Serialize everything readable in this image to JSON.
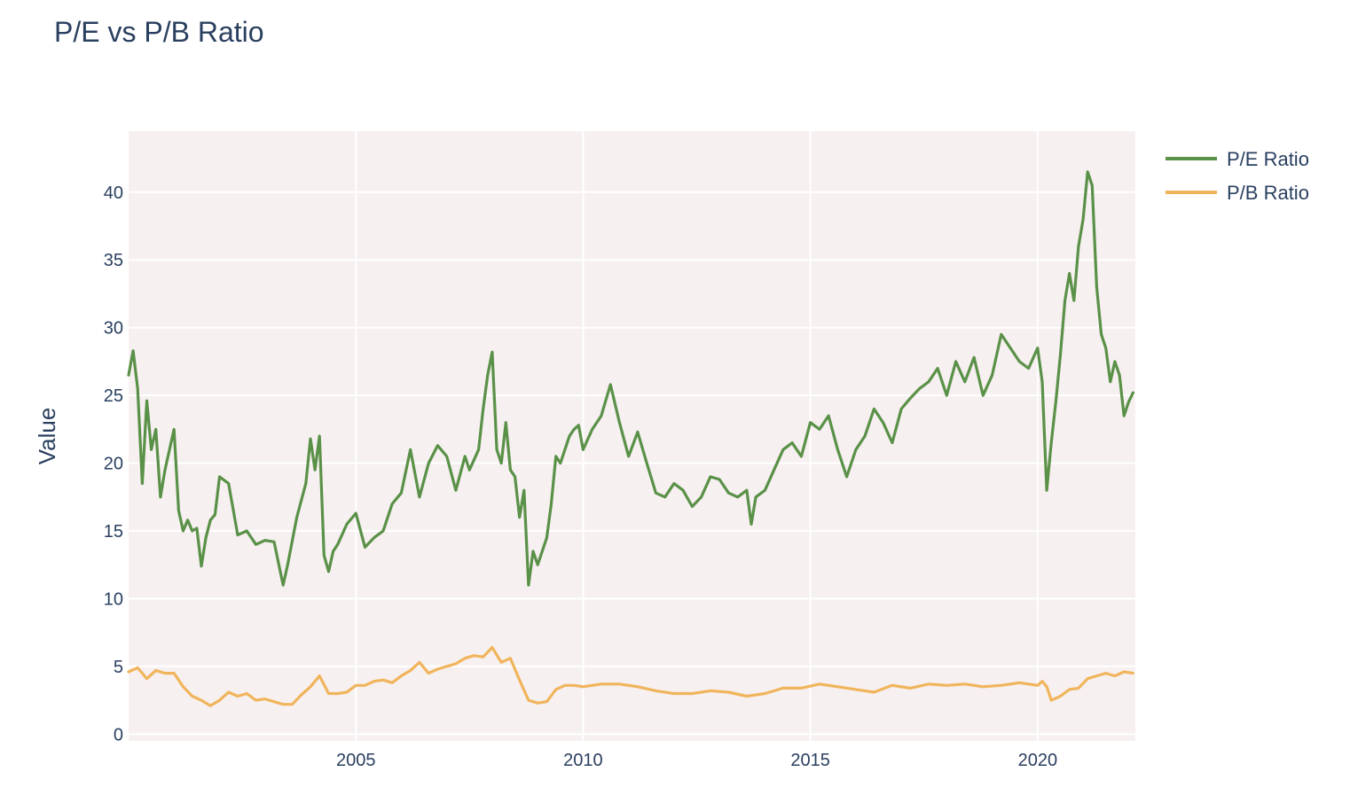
{
  "chart_data": {
    "type": "line",
    "title": "P/E vs P/B Ratio",
    "xlabel": "",
    "ylabel": "Value",
    "x_range": [
      2000.0,
      2022.15
    ],
    "ylim": [
      -0.5,
      44.5
    ],
    "x_ticks": [
      {
        "value": 2005,
        "label": "2005"
      },
      {
        "value": 2010,
        "label": "2010"
      },
      {
        "value": 2015,
        "label": "2015"
      },
      {
        "value": 2020,
        "label": "2020"
      }
    ],
    "y_ticks": [
      {
        "value": 0,
        "label": "0"
      },
      {
        "value": 5,
        "label": "5"
      },
      {
        "value": 10,
        "label": "10"
      },
      {
        "value": 15,
        "label": "15"
      },
      {
        "value": 20,
        "label": "20"
      },
      {
        "value": 25,
        "label": "25"
      },
      {
        "value": 30,
        "label": "30"
      },
      {
        "value": 35,
        "label": "35"
      },
      {
        "value": 40,
        "label": "40"
      }
    ],
    "grid": true,
    "plot_background": "#f7f0f0",
    "legend_position": "top-right",
    "series": [
      {
        "name": "P/E Ratio",
        "color": "#5a9148",
        "x": [
          2000.0,
          2000.1,
          2000.2,
          2000.3,
          2000.4,
          2000.5,
          2000.6,
          2000.7,
          2000.8,
          2000.9,
          2001.0,
          2001.1,
          2001.2,
          2001.3,
          2001.4,
          2001.5,
          2001.6,
          2001.7,
          2001.8,
          2001.9,
          2002.0,
          2002.2,
          2002.4,
          2002.6,
          2002.8,
          2003.0,
          2003.2,
          2003.4,
          2003.5,
          2003.7,
          2003.9,
          2004.0,
          2004.1,
          2004.2,
          2004.3,
          2004.4,
          2004.5,
          2004.6,
          2004.8,
          2005.0,
          2005.2,
          2005.4,
          2005.6,
          2005.8,
          2006.0,
          2006.2,
          2006.4,
          2006.6,
          2006.8,
          2007.0,
          2007.2,
          2007.4,
          2007.5,
          2007.7,
          2007.8,
          2007.9,
          2008.0,
          2008.1,
          2008.2,
          2008.3,
          2008.4,
          2008.5,
          2008.6,
          2008.7,
          2008.8,
          2008.9,
          2009.0,
          2009.1,
          2009.2,
          2009.3,
          2009.4,
          2009.5,
          2009.6,
          2009.7,
          2009.8,
          2009.9,
          2010.0,
          2010.2,
          2010.4,
          2010.6,
          2010.8,
          2011.0,
          2011.2,
          2011.4,
          2011.6,
          2011.8,
          2012.0,
          2012.2,
          2012.4,
          2012.6,
          2012.8,
          2013.0,
          2013.2,
          2013.4,
          2013.6,
          2013.7,
          2013.8,
          2014.0,
          2014.2,
          2014.4,
          2014.6,
          2014.8,
          2015.0,
          2015.2,
          2015.4,
          2015.6,
          2015.8,
          2016.0,
          2016.2,
          2016.4,
          2016.6,
          2016.8,
          2017.0,
          2017.2,
          2017.4,
          2017.6,
          2017.8,
          2018.0,
          2018.2,
          2018.4,
          2018.6,
          2018.8,
          2019.0,
          2019.2,
          2019.4,
          2019.6,
          2019.8,
          2020.0,
          2020.1,
          2020.2,
          2020.3,
          2020.4,
          2020.5,
          2020.6,
          2020.7,
          2020.8,
          2020.9,
          2021.0,
          2021.1,
          2021.2,
          2021.3,
          2021.4,
          2021.5,
          2021.6,
          2021.7,
          2021.8,
          2021.9,
          2022.0,
          2022.1
        ],
        "y": [
          26.5,
          28.3,
          25.5,
          18.5,
          24.6,
          21.0,
          22.5,
          17.5,
          19.5,
          21.0,
          22.5,
          16.5,
          15.0,
          15.8,
          15.0,
          15.2,
          12.4,
          14.5,
          15.8,
          16.2,
          19.0,
          18.5,
          14.7,
          15.0,
          14.0,
          14.3,
          14.2,
          11.0,
          12.5,
          16.0,
          18.5,
          21.8,
          19.5,
          22.0,
          13.2,
          12.0,
          13.5,
          14.0,
          15.5,
          16.3,
          13.8,
          14.5,
          15.0,
          17.0,
          17.8,
          21.0,
          17.5,
          20.0,
          21.3,
          20.5,
          18.0,
          20.5,
          19.5,
          21.0,
          24.0,
          26.5,
          28.2,
          21.0,
          20.0,
          23.0,
          19.5,
          19.0,
          16.0,
          18.0,
          11.0,
          13.5,
          12.5,
          13.5,
          14.5,
          17.0,
          20.5,
          20.0,
          21.0,
          22.0,
          22.5,
          22.8,
          21.0,
          22.5,
          23.5,
          25.8,
          23.0,
          20.5,
          22.3,
          20.0,
          17.8,
          17.5,
          18.5,
          18.0,
          16.8,
          17.5,
          19.0,
          18.8,
          17.8,
          17.5,
          18.0,
          15.5,
          17.5,
          18.0,
          19.5,
          21.0,
          21.5,
          20.5,
          23.0,
          22.5,
          23.5,
          21.0,
          19.0,
          21.0,
          22.0,
          24.0,
          23.0,
          21.5,
          24.0,
          24.8,
          25.5,
          26.0,
          27.0,
          25.0,
          27.5,
          26.0,
          27.8,
          25.0,
          26.5,
          29.5,
          28.5,
          27.5,
          27.0,
          28.5,
          26.0,
          18.0,
          21.5,
          24.5,
          28.0,
          32.0,
          34.0,
          32.0,
          36.0,
          38.0,
          41.5,
          40.5,
          33.0,
          29.5,
          28.5,
          26.0,
          27.5,
          26.5,
          23.5,
          24.5,
          25.2
        ]
      },
      {
        "name": "P/B Ratio",
        "color": "#f0b55c",
        "x": [
          2000.0,
          2000.2,
          2000.4,
          2000.6,
          2000.8,
          2001.0,
          2001.2,
          2001.4,
          2001.6,
          2001.8,
          2002.0,
          2002.2,
          2002.4,
          2002.6,
          2002.8,
          2003.0,
          2003.2,
          2003.4,
          2003.6,
          2003.8,
          2004.0,
          2004.2,
          2004.4,
          2004.6,
          2004.8,
          2005.0,
          2005.2,
          2005.4,
          2005.6,
          2005.8,
          2006.0,
          2006.2,
          2006.4,
          2006.6,
          2006.8,
          2007.0,
          2007.2,
          2007.4,
          2007.6,
          2007.8,
          2008.0,
          2008.2,
          2008.4,
          2008.6,
          2008.8,
          2009.0,
          2009.2,
          2009.4,
          2009.6,
          2009.8,
          2010.0,
          2010.4,
          2010.8,
          2011.2,
          2011.6,
          2012.0,
          2012.4,
          2012.8,
          2013.2,
          2013.6,
          2014.0,
          2014.4,
          2014.8,
          2015.2,
          2015.6,
          2016.0,
          2016.4,
          2016.8,
          2017.2,
          2017.6,
          2018.0,
          2018.4,
          2018.8,
          2019.2,
          2019.6,
          2020.0,
          2020.1,
          2020.2,
          2020.3,
          2020.5,
          2020.7,
          2020.9,
          2021.1,
          2021.3,
          2021.5,
          2021.7,
          2021.9,
          2022.1
        ],
        "y": [
          4.6,
          4.9,
          4.1,
          4.7,
          4.5,
          4.5,
          3.5,
          2.8,
          2.5,
          2.1,
          2.5,
          3.1,
          2.8,
          3.0,
          2.5,
          2.6,
          2.4,
          2.2,
          2.2,
          2.9,
          3.5,
          4.3,
          3.0,
          3.0,
          3.1,
          3.6,
          3.6,
          3.9,
          4.0,
          3.8,
          4.3,
          4.7,
          5.3,
          4.5,
          4.8,
          5.0,
          5.2,
          5.6,
          5.8,
          5.7,
          6.4,
          5.3,
          5.6,
          4.0,
          2.5,
          2.3,
          2.4,
          3.3,
          3.6,
          3.6,
          3.5,
          3.7,
          3.7,
          3.5,
          3.2,
          3.0,
          3.0,
          3.2,
          3.1,
          2.8,
          3.0,
          3.4,
          3.4,
          3.7,
          3.5,
          3.3,
          3.1,
          3.6,
          3.4,
          3.7,
          3.6,
          3.7,
          3.5,
          3.6,
          3.8,
          3.6,
          3.9,
          3.5,
          2.5,
          2.8,
          3.3,
          3.4,
          4.1,
          4.3,
          4.5,
          4.3,
          4.6,
          4.5
        ]
      }
    ]
  }
}
